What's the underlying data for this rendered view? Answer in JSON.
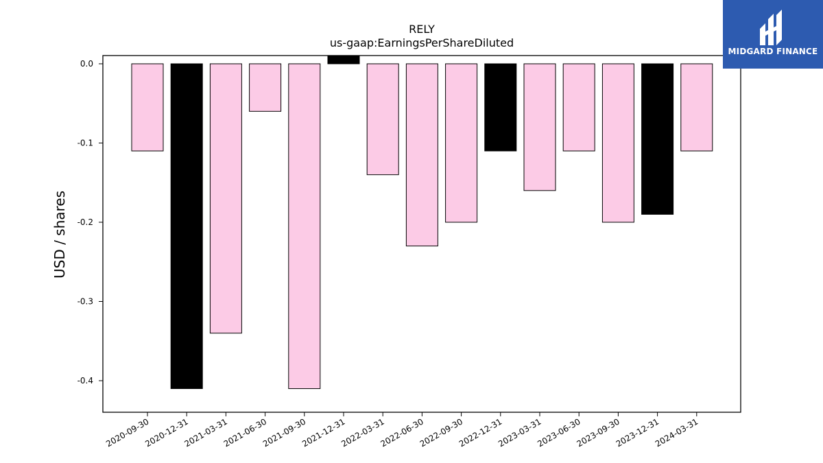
{
  "chart_data": {
    "type": "bar",
    "title": "RELY",
    "subtitle": "us-gaap:EarningsPerShareDiluted",
    "xlabel": "",
    "ylabel": "USD / shares",
    "ylim": [
      -0.44,
      0.01
    ],
    "yticks": [
      "0.0",
      "-0.1",
      "-0.2",
      "-0.3",
      "-0.4"
    ],
    "ytick_values": [
      0.0,
      -0.1,
      -0.2,
      -0.3,
      -0.4
    ],
    "categories": [
      "2020-09-30",
      "2020-12-31",
      "2021-03-31",
      "2021-06-30",
      "2021-09-30",
      "2021-12-31",
      "2022-03-31",
      "2022-06-30",
      "2022-09-30",
      "2022-12-31",
      "2023-03-31",
      "2023-06-30",
      "2023-09-30",
      "2023-12-31",
      "2024-03-31"
    ],
    "values": [
      -0.11,
      -0.41,
      -0.34,
      -0.06,
      -0.41,
      0.01,
      -0.14,
      -0.23,
      -0.2,
      -0.11,
      -0.16,
      -0.11,
      -0.2,
      -0.19,
      -0.11
    ],
    "bar_colors": [
      "#fccbe6",
      "#000000",
      "#fccbe6",
      "#fccbe6",
      "#fccbe6",
      "#000000",
      "#fccbe6",
      "#fccbe6",
      "#fccbe6",
      "#000000",
      "#fccbe6",
      "#fccbe6",
      "#fccbe6",
      "#000000",
      "#fccbe6"
    ],
    "grid": false
  },
  "logo": {
    "text": "MIDGARD FINANCE",
    "background": "#2d5bb0"
  }
}
